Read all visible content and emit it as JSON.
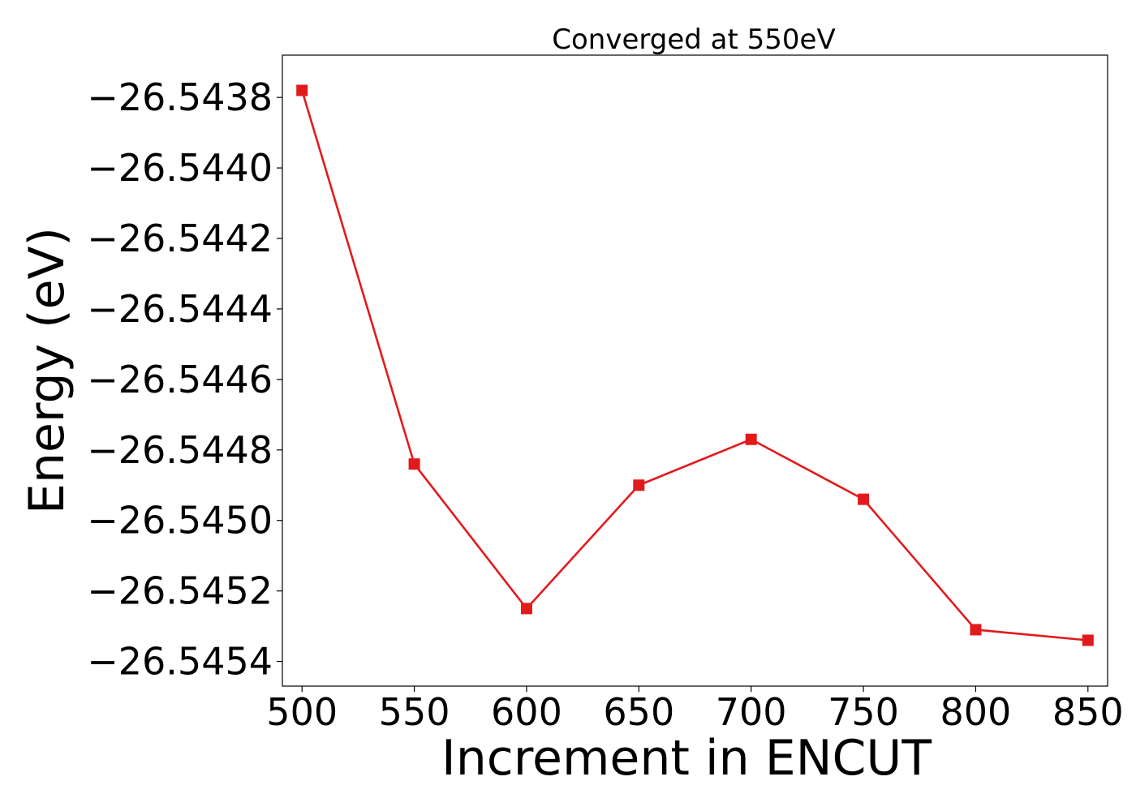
{
  "chart_data": {
    "type": "line",
    "title": "Converged at 550eV",
    "xlabel": "Increment in ENCUT",
    "ylabel": "Energy (eV)",
    "x": [
      500,
      550,
      600,
      650,
      700,
      750,
      800,
      850
    ],
    "series": [
      {
        "values": [
          -26.54378,
          -26.54484,
          -26.54525,
          -26.5449,
          -26.54477,
          -26.54494,
          -26.54531,
          -26.54534
        ],
        "color": "#e31a1c",
        "marker": "square"
      }
    ],
    "xticks": [
      500,
      550,
      600,
      650,
      700,
      750,
      800,
      850
    ],
    "xtick_labels": [
      "500",
      "550",
      "600",
      "650",
      "700",
      "750",
      "800",
      "850"
    ],
    "yticks": [
      -26.5438,
      -26.544,
      -26.5442,
      -26.5444,
      -26.5446,
      -26.5448,
      -26.545,
      -26.5452,
      -26.5454
    ],
    "ytick_labels": [
      "−26.5438",
      "−26.5440",
      "−26.5442",
      "−26.5444",
      "−26.5446",
      "−26.5448",
      "−26.5450",
      "−26.5452",
      "−26.5454"
    ],
    "xlim": [
      491.25,
      858.75
    ],
    "ylim": [
      -26.54547,
      -26.54368
    ],
    "grid": false
  }
}
